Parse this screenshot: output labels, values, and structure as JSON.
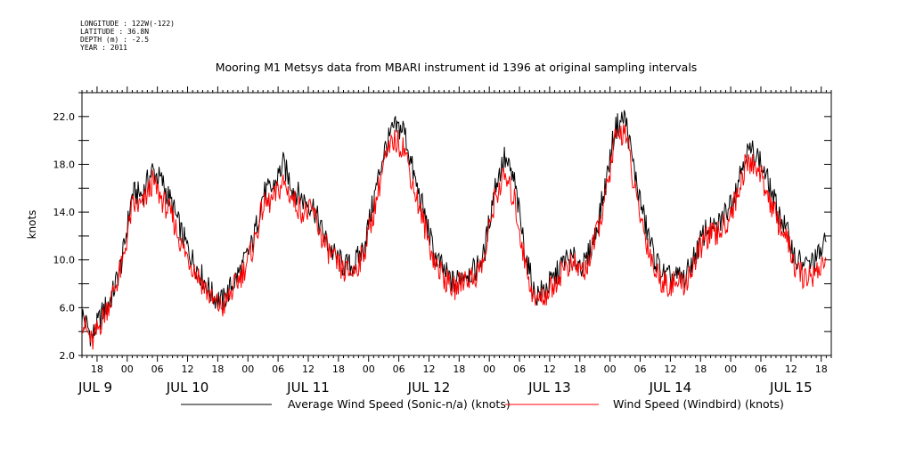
{
  "meta": {
    "longitude": "LONGITUDE : 122W(-122)",
    "latitude": "LATITUDE : 36.8N",
    "depth": "DEPTH (m) : -2.5",
    "year": "YEAR : 2011"
  },
  "chart_data": {
    "type": "line",
    "title": "Mooring M1 Metsys data from MBARI instrument id 1396 at original sampling intervals",
    "ylabel": "knots",
    "xlabel": "",
    "ylim": [
      2.0,
      24.0
    ],
    "xlim": [
      15.0,
      164.0
    ],
    "y_ticks": [
      "2.0",
      "6.0",
      "10.0",
      "14.0",
      "18.0",
      "22.0"
    ],
    "hour_ticks": [
      {
        "x": 18,
        "label": "18"
      },
      {
        "x": 24,
        "label": "00"
      },
      {
        "x": 30,
        "label": "06"
      },
      {
        "x": 36,
        "label": "12"
      },
      {
        "x": 42,
        "label": "18"
      },
      {
        "x": 48,
        "label": "00"
      },
      {
        "x": 54,
        "label": "06"
      },
      {
        "x": 60,
        "label": "12"
      },
      {
        "x": 66,
        "label": "18"
      },
      {
        "x": 72,
        "label": "00"
      },
      {
        "x": 78,
        "label": "06"
      },
      {
        "x": 84,
        "label": "12"
      },
      {
        "x": 90,
        "label": "18"
      },
      {
        "x": 96,
        "label": "00"
      },
      {
        "x": 102,
        "label": "06"
      },
      {
        "x": 108,
        "label": "12"
      },
      {
        "x": 114,
        "label": "18"
      },
      {
        "x": 120,
        "label": "00"
      },
      {
        "x": 126,
        "label": "06"
      },
      {
        "x": 132,
        "label": "12"
      },
      {
        "x": 138,
        "label": "18"
      },
      {
        "x": 144,
        "label": "00"
      },
      {
        "x": 150,
        "label": "06"
      },
      {
        "x": 156,
        "label": "12"
      },
      {
        "x": 162,
        "label": "18"
      }
    ],
    "day_labels": [
      {
        "x": 16,
        "label": "JUL  9"
      },
      {
        "x": 36,
        "label": "JUL 10"
      },
      {
        "x": 60,
        "label": "JUL 11"
      },
      {
        "x": 84,
        "label": "JUL 12"
      },
      {
        "x": 108,
        "label": "JUL 13"
      },
      {
        "x": 132,
        "label": "JUL 14"
      },
      {
        "x": 156,
        "label": "JUL 15"
      }
    ],
    "series": [
      {
        "name": "Average Wind Speed (Sonic-n/a) (knots)",
        "color": "#000000",
        "x": [
          15,
          17,
          19,
          21,
          23,
          25,
          27,
          29,
          31,
          33,
          35,
          37,
          39,
          41,
          43,
          45,
          47,
          49,
          51,
          53,
          55,
          57,
          59,
          61,
          63,
          65,
          67,
          69,
          71,
          73,
          75,
          77,
          79,
          81,
          83,
          85,
          87,
          89,
          91,
          93,
          95,
          97,
          99,
          101,
          103,
          105,
          107,
          109,
          111,
          113,
          115,
          117,
          119,
          121,
          123,
          125,
          127,
          129,
          131,
          133,
          135,
          137,
          139,
          141,
          143,
          145,
          147,
          149,
          151,
          153,
          155,
          157,
          159,
          161,
          163
        ],
        "y": [
          5.5,
          3.5,
          5.5,
          7,
          10,
          15.5,
          15.5,
          17.5,
          16.5,
          14.5,
          12,
          10,
          8.5,
          7,
          6.5,
          8,
          9.5,
          11.5,
          15.5,
          16,
          18,
          16,
          15,
          14.5,
          12,
          10.5,
          9.5,
          9.5,
          11,
          15,
          19,
          21,
          21,
          17,
          14,
          10.5,
          9,
          8,
          9,
          9,
          10.5,
          16,
          18.5,
          16.5,
          11,
          7,
          7.5,
          8.5,
          10,
          10,
          9.5,
          12,
          16,
          21,
          22,
          17,
          13,
          10,
          8.5,
          8.5,
          8.5,
          10.5,
          12.5,
          12.5,
          14,
          16,
          19,
          19,
          17,
          14.5,
          12.5,
          10,
          9.5,
          10,
          11.5
        ]
      },
      {
        "name": "Wind Speed (Windbird) (knots)",
        "color": "#ff0000",
        "x": [
          15,
          17,
          19,
          21,
          23,
          25,
          27,
          29,
          31,
          33,
          35,
          37,
          39,
          41,
          43,
          45,
          47,
          49,
          51,
          53,
          55,
          57,
          59,
          61,
          63,
          65,
          67,
          69,
          71,
          73,
          75,
          77,
          79,
          81,
          83,
          85,
          87,
          89,
          91,
          93,
          95,
          97,
          99,
          101,
          103,
          105,
          107,
          109,
          111,
          113,
          115,
          117,
          119,
          121,
          123,
          125,
          127,
          129,
          131,
          133,
          135,
          137,
          139,
          141,
          143,
          145,
          147,
          149,
          151,
          153,
          155,
          157,
          159,
          161,
          163
        ],
        "y": [
          5,
          3,
          5,
          7,
          9.5,
          14.5,
          14.5,
          16.5,
          15,
          13.5,
          11,
          9.5,
          8,
          6.5,
          6,
          7.5,
          9,
          11,
          14.5,
          15,
          16.5,
          15,
          14,
          14,
          11.5,
          10,
          9,
          9,
          10.5,
          14,
          18,
          20,
          19.5,
          16,
          13,
          10,
          8.5,
          7.5,
          8.5,
          8.5,
          10,
          15,
          17,
          15,
          10,
          6.5,
          7,
          8,
          9.5,
          9.5,
          9,
          11.5,
          15,
          20,
          21,
          15.5,
          12,
          9,
          8,
          8,
          8,
          10,
          12,
          12,
          13,
          15,
          18,
          18,
          16,
          13.5,
          12,
          9,
          8.5,
          9,
          10
        ]
      }
    ],
    "legend": {
      "placement": "bottom",
      "entries": [
        {
          "label": "Average Wind Speed (Sonic-n/a) (knots)",
          "color": "#000000"
        },
        {
          "label": "Wind Speed (Windbird) (knots)",
          "color": "#ff0000"
        }
      ]
    },
    "grid": false
  }
}
